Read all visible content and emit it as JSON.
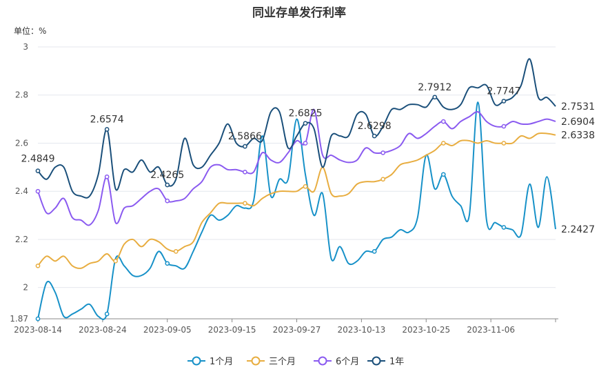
{
  "chart_data": {
    "type": "line",
    "title": "同业存单发行利率",
    "unit_label": "单位：%",
    "ylim": [
      1.87,
      3.0
    ],
    "yticks": [
      1.87,
      2,
      2.2,
      2.4,
      2.6,
      2.8,
      3
    ],
    "x_tick_labels": [
      "2023-08-14",
      "2023-08-24",
      "2023-09-05",
      "2023-09-15",
      "2023-09-27",
      "2023-10-13",
      "2023-10-25",
      "2023-11-06"
    ],
    "x_count": 61,
    "legend_position": "bottom",
    "grid": true,
    "series": [
      {
        "name": "1个月",
        "color": "#1791c8",
        "values": [
          1.87,
          2.02,
          1.98,
          1.88,
          1.89,
          1.91,
          1.93,
          1.88,
          1.89,
          2.12,
          2.09,
          2.05,
          2.05,
          2.08,
          2.15,
          2.1,
          2.09,
          2.08,
          2.15,
          2.23,
          2.3,
          2.28,
          2.3,
          2.34,
          2.33,
          2.36,
          2.63,
          2.38,
          2.45,
          2.45,
          2.7,
          2.47,
          2.3,
          2.39,
          2.12,
          2.17,
          2.1,
          2.11,
          2.15,
          2.15,
          2.2,
          2.21,
          2.24,
          2.23,
          2.29,
          2.55,
          2.41,
          2.47,
          2.38,
          2.34,
          2.3,
          2.77,
          2.28,
          2.27,
          2.25,
          2.24,
          2.22,
          2.43,
          2.25,
          2.46,
          2.2427
        ],
        "annotations": [
          {
            "index": 60,
            "text": "2.2427"
          }
        ]
      },
      {
        "name": "三个月",
        "color": "#e8ad40",
        "values": [
          2.09,
          2.13,
          2.11,
          2.13,
          2.09,
          2.08,
          2.1,
          2.11,
          2.14,
          2.11,
          2.18,
          2.2,
          2.17,
          2.2,
          2.19,
          2.16,
          2.15,
          2.17,
          2.19,
          2.27,
          2.31,
          2.35,
          2.35,
          2.35,
          2.35,
          2.34,
          2.37,
          2.39,
          2.4,
          2.4,
          2.4,
          2.42,
          2.4,
          2.5,
          2.39,
          2.38,
          2.39,
          2.43,
          2.44,
          2.44,
          2.45,
          2.47,
          2.51,
          2.52,
          2.53,
          2.55,
          2.57,
          2.6,
          2.59,
          2.61,
          2.61,
          2.6,
          2.61,
          2.6,
          2.6,
          2.6,
          2.63,
          2.62,
          2.64,
          2.64,
          2.6338
        ],
        "annotations": [
          {
            "index": 60,
            "text": "2.6338"
          }
        ]
      },
      {
        "name": "6个月",
        "color": "#8a5af0",
        "values": [
          2.4,
          2.31,
          2.33,
          2.37,
          2.29,
          2.28,
          2.26,
          2.32,
          2.46,
          2.27,
          2.33,
          2.34,
          2.37,
          2.4,
          2.41,
          2.36,
          2.36,
          2.37,
          2.41,
          2.44,
          2.5,
          2.51,
          2.49,
          2.49,
          2.48,
          2.48,
          2.56,
          2.53,
          2.52,
          2.56,
          2.61,
          2.6,
          2.74,
          2.55,
          2.55,
          2.53,
          2.52,
          2.53,
          2.58,
          2.56,
          2.56,
          2.57,
          2.59,
          2.64,
          2.62,
          2.64,
          2.67,
          2.69,
          2.66,
          2.69,
          2.71,
          2.73,
          2.69,
          2.67,
          2.67,
          2.69,
          2.68,
          2.68,
          2.69,
          2.7,
          2.6904
        ],
        "annotations": [
          {
            "index": 60,
            "text": "2.6904"
          }
        ]
      },
      {
        "name": "1年",
        "color": "#1a4f7a",
        "values": [
          2.4849,
          2.45,
          2.5,
          2.5,
          2.4,
          2.38,
          2.38,
          2.47,
          2.6574,
          2.41,
          2.49,
          2.48,
          2.53,
          2.48,
          2.5,
          2.4265,
          2.45,
          2.62,
          2.51,
          2.5,
          2.55,
          2.6,
          2.68,
          2.6,
          2.5866,
          2.62,
          2.61,
          2.73,
          2.73,
          2.58,
          2.63,
          2.6825,
          2.66,
          2.5,
          2.63,
          2.63,
          2.63,
          2.72,
          2.72,
          2.6298,
          2.67,
          2.74,
          2.74,
          2.76,
          2.76,
          2.75,
          2.7912,
          2.75,
          2.74,
          2.76,
          2.83,
          2.83,
          2.84,
          2.76,
          2.7747,
          2.79,
          2.84,
          2.95,
          2.79,
          2.79,
          2.7531
        ],
        "annotations": [
          {
            "index": 0,
            "text": "2.4849"
          },
          {
            "index": 8,
            "text": "2.6574"
          },
          {
            "index": 15,
            "text": "2.4265"
          },
          {
            "index": 24,
            "text": "2.5866"
          },
          {
            "index": 31,
            "text": "2.6825"
          },
          {
            "index": 39,
            "text": "2.6298"
          },
          {
            "index": 46,
            "text": "2.7912"
          },
          {
            "index": 54,
            "text": "2.7747"
          },
          {
            "index": 60,
            "text": "2.7531"
          }
        ]
      }
    ]
  }
}
